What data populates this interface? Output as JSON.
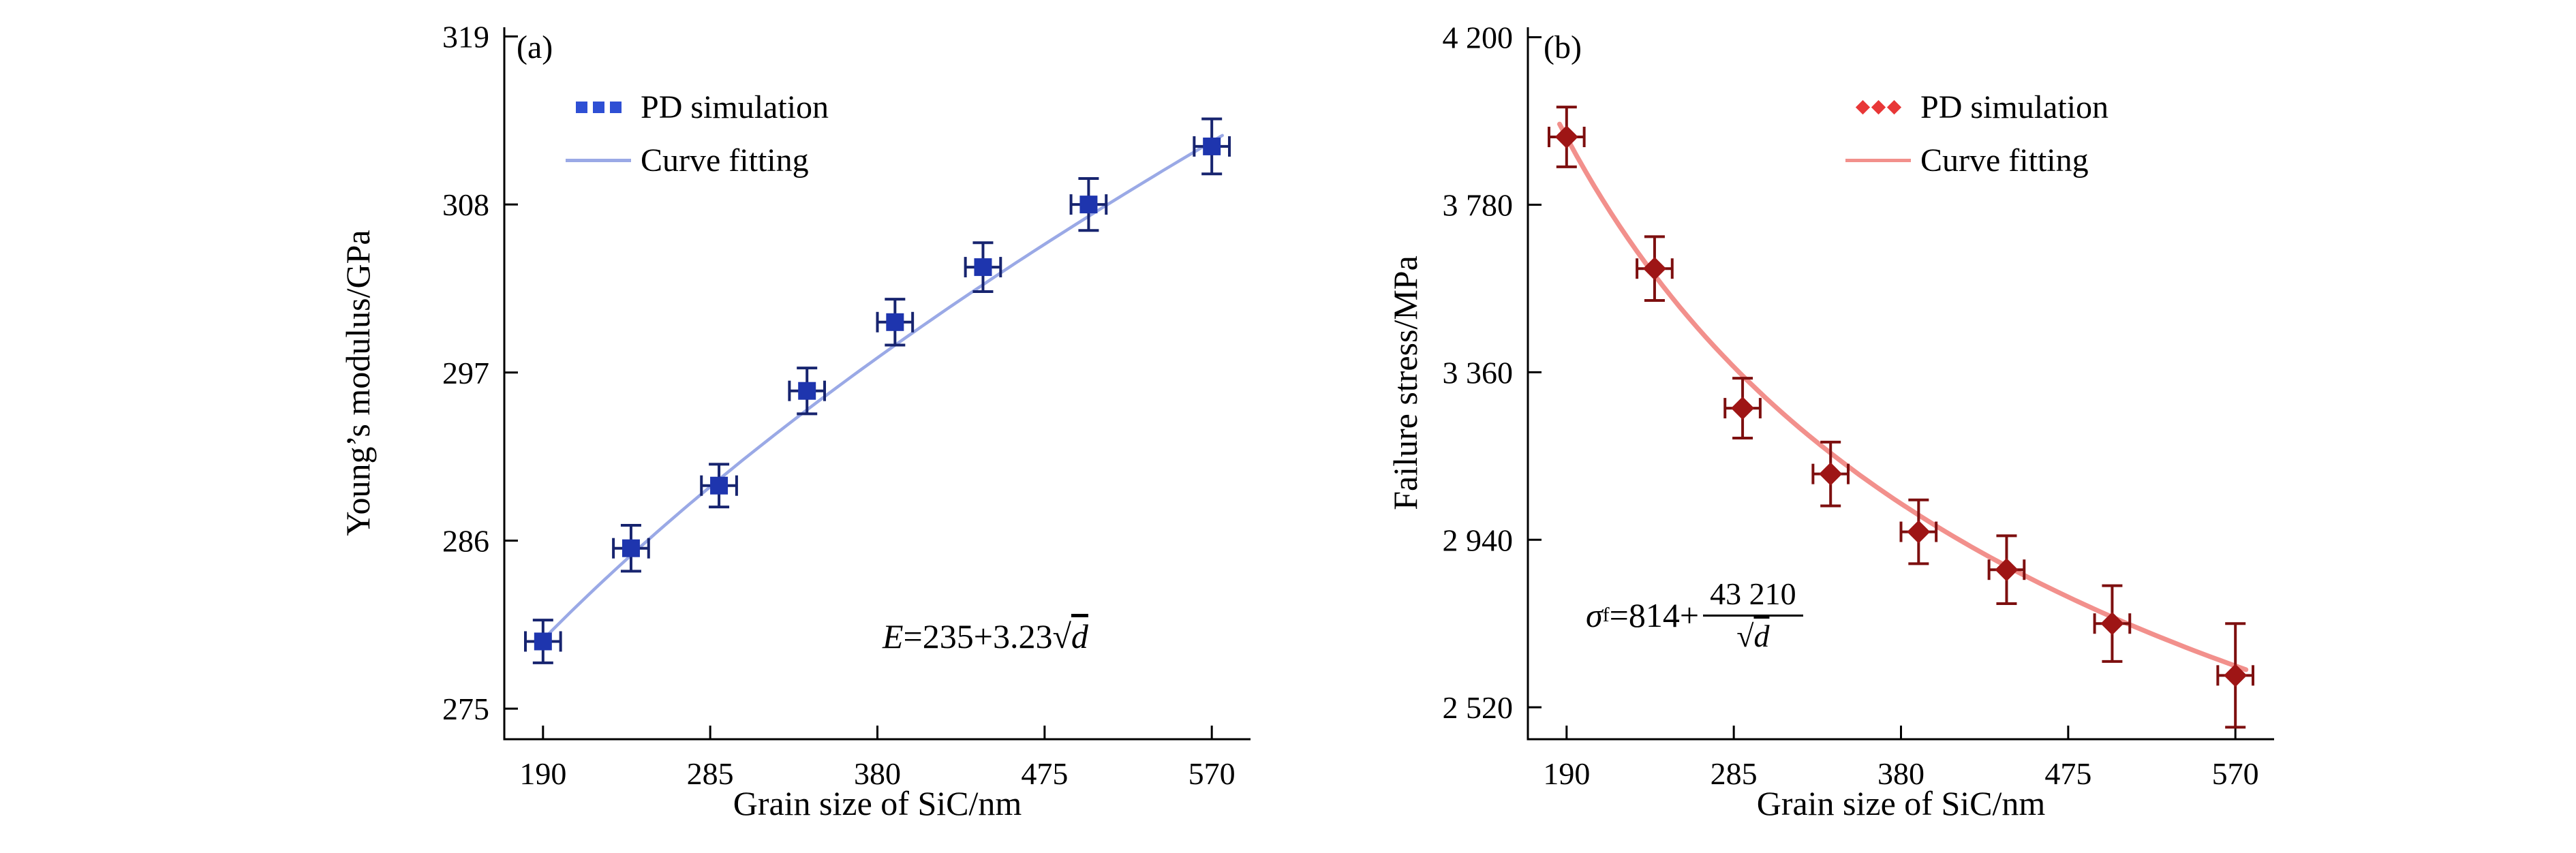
{
  "figure": {
    "background": "#ffffff"
  },
  "chart_data": [
    {
      "type": "scatter",
      "panel_label": "(a)",
      "xlabel": "Grain size of SiC/nm",
      "ylabel": "Young’s modulus/GPa",
      "xlim": [
        168,
        592
      ],
      "ylim": [
        273,
        319.6
      ],
      "xticks": [
        190,
        285,
        380,
        475,
        570
      ],
      "yticks": [
        275,
        286,
        297,
        308,
        319
      ],
      "xtick_labels": [
        "190",
        "285",
        "380",
        "475",
        "570"
      ],
      "ytick_labels": [
        "275",
        "286",
        "297",
        "308",
        "319"
      ],
      "x": [
        190,
        240,
        290,
        340,
        390,
        440,
        500,
        570
      ],
      "y": [
        279.4,
        285.5,
        289.6,
        295.8,
        300.3,
        303.9,
        308.0,
        311.8
      ],
      "xerr": [
        10,
        10,
        10,
        10,
        10,
        10,
        10,
        10
      ],
      "yerr": [
        1.4,
        1.5,
        1.4,
        1.5,
        1.5,
        1.6,
        1.7,
        1.8
      ],
      "fit": {
        "form": "a+b*sqrt(x)",
        "a": 235,
        "b": 3.23,
        "range": [
          186,
          576
        ],
        "formula_label": "E=235+3.23√d"
      },
      "marker": "square",
      "grid": "off",
      "legend_position": "upper-left-inside",
      "colors": {
        "marker": "#1e35ae",
        "error": "#17246f",
        "curve": "#9aa9e6",
        "legend_marker": "#2e4fd4"
      },
      "legend": [
        {
          "marker": "squares",
          "label": "PD simulation"
        },
        {
          "marker": "line",
          "label": "Curve fitting"
        }
      ],
      "annotation": {
        "lhs": "E",
        "sub": "",
        "body": "=235+3.23",
        "radicand": "d"
      }
    },
    {
      "type": "scatter",
      "panel_label": "(b)",
      "xlabel": "Grain size of SiC/nm",
      "ylabel": "Failure stress/MPa",
      "xlim": [
        168,
        592
      ],
      "ylim": [
        2440,
        4225
      ],
      "xticks": [
        190,
        285,
        380,
        475,
        570
      ],
      "yticks": [
        2520,
        2940,
        3360,
        3780,
        4200
      ],
      "xtick_labels": [
        "190",
        "285",
        "380",
        "475",
        "570"
      ],
      "ytick_labels": [
        "2 520",
        "2 940",
        "3 360",
        "3 780",
        "4 200"
      ],
      "x": [
        190,
        240,
        290,
        340,
        390,
        440,
        500,
        570
      ],
      "y": [
        3950,
        3620,
        3270,
        3105,
        2960,
        2865,
        2730,
        2600
      ],
      "xerr": [
        10,
        10,
        10,
        10,
        10,
        10,
        10,
        10
      ],
      "yerr": [
        75,
        80,
        75,
        80,
        80,
        85,
        95,
        130
      ],
      "fit": {
        "form": "a+b/sqrt(x)",
        "a": 814,
        "b": 43210,
        "range": [
          186,
          576
        ],
        "formula_label": "σf=814+43 210/√d"
      },
      "marker": "diamond",
      "grid": "off",
      "legend_position": "upper-right-inside",
      "colors": {
        "marker": "#9e1515",
        "error": "#7d0f0f",
        "curve": "#f2908c",
        "legend_marker": "#e83737"
      },
      "legend": [
        {
          "marker": "diamonds",
          "label": "PD simulation"
        },
        {
          "marker": "line",
          "label": "Curve fitting"
        }
      ],
      "annotation": {
        "lhs": "σ",
        "sub": "f",
        "body": "=814+",
        "numerator": "43 210",
        "radicand": "d"
      }
    }
  ]
}
